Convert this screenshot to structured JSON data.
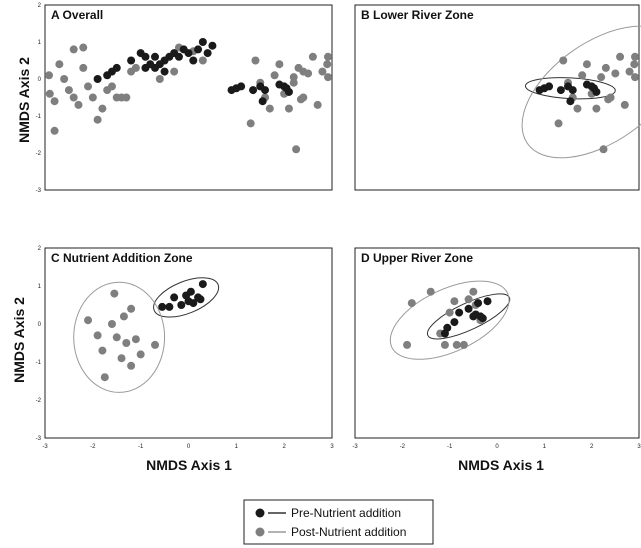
{
  "colors": {
    "pre": "#1a1a1a",
    "post": "#7f7f7f",
    "ellipse_pre": "#333333",
    "ellipse_post": "#9a9a9a"
  },
  "axis_titles": {
    "y": "NMDS Axis 2",
    "x": "NMDS Axis 1"
  },
  "legend": {
    "items": [
      {
        "label": "Pre-Nutrient addition",
        "series": "pre"
      },
      {
        "label": "Post-Nutrient addition",
        "series": "post"
      }
    ]
  },
  "chart_data": [
    {
      "type": "scatter",
      "title": "A  Overall",
      "xlim": [
        -3,
        3
      ],
      "ylim": [
        -3,
        2
      ],
      "yticks": [
        "2",
        "1",
        "0",
        "-1",
        "-2",
        "-3"
      ],
      "xticks": [],
      "series": [
        {
          "name": "Pre-Nutrient addition",
          "key": "pre",
          "points": [
            [
              -1.9,
              0.0
            ],
            [
              -1.7,
              0.1
            ],
            [
              -1.5,
              0.3
            ],
            [
              -1.6,
              0.2
            ],
            [
              -1.2,
              0.5
            ],
            [
              -1.0,
              0.7
            ],
            [
              -0.9,
              0.3
            ],
            [
              -0.8,
              0.4
            ],
            [
              -0.7,
              0.6
            ],
            [
              -0.6,
              0.4
            ],
            [
              -0.5,
              0.5
            ],
            [
              -0.4,
              0.6
            ],
            [
              -0.3,
              0.7
            ],
            [
              -0.2,
              0.6
            ],
            [
              -0.1,
              0.8
            ],
            [
              0.0,
              0.7
            ],
            [
              0.1,
              0.5
            ],
            [
              0.2,
              0.8
            ],
            [
              0.3,
              1.0
            ],
            [
              0.5,
              0.9
            ],
            [
              0.4,
              0.7
            ],
            [
              -0.9,
              0.6
            ],
            [
              -0.7,
              0.3
            ],
            [
              -0.5,
              0.2
            ],
            [
              0.9,
              -0.3
            ],
            [
              1.0,
              -0.25
            ],
            [
              1.1,
              -0.2
            ],
            [
              1.35,
              -0.3
            ],
            [
              1.5,
              -0.2
            ],
            [
              1.55,
              -0.6
            ],
            [
              1.6,
              -0.3
            ],
            [
              1.9,
              -0.15
            ],
            [
              2.0,
              -0.2
            ],
            [
              2.1,
              -0.35
            ],
            [
              2.05,
              -0.25
            ]
          ]
        },
        {
          "name": "Post-Nutrient addition",
          "key": "post",
          "points": [
            [
              -3.0,
              0.1
            ],
            [
              -2.9,
              -0.4
            ],
            [
              -2.8,
              -0.6
            ],
            [
              -2.7,
              0.4
            ],
            [
              -2.6,
              0.0
            ],
            [
              -2.5,
              -0.3
            ],
            [
              -2.4,
              -0.5
            ],
            [
              -2.4,
              0.8
            ],
            [
              -2.3,
              -0.7
            ],
            [
              -2.2,
              0.85
            ],
            [
              -2.2,
              0.3
            ],
            [
              -2.1,
              -0.2
            ],
            [
              -2.0,
              -0.5
            ],
            [
              -1.9,
              -1.1
            ],
            [
              -1.8,
              -0.8
            ],
            [
              -1.7,
              -0.3
            ],
            [
              -1.6,
              -0.2
            ],
            [
              -1.5,
              -0.5
            ],
            [
              -1.4,
              -0.5
            ],
            [
              -1.3,
              -0.5
            ],
            [
              -1.2,
              0.2
            ],
            [
              -1.1,
              0.3
            ],
            [
              -2.8,
              -1.4
            ],
            [
              -0.2,
              0.85
            ],
            [
              0.1,
              0.75
            ],
            [
              0.3,
              0.5
            ],
            [
              -0.6,
              0.0
            ],
            [
              -0.3,
              0.2
            ],
            [
              1.3,
              -1.2
            ],
            [
              1.4,
              0.5
            ],
            [
              1.5,
              -0.1
            ],
            [
              1.6,
              -0.5
            ],
            [
              1.7,
              -0.8
            ],
            [
              1.8,
              0.1
            ],
            [
              1.9,
              0.4
            ],
            [
              2.0,
              -0.4
            ],
            [
              2.1,
              -0.8
            ],
            [
              2.2,
              0.05
            ],
            [
              2.25,
              -1.9
            ],
            [
              2.3,
              0.3
            ],
            [
              2.35,
              -0.55
            ],
            [
              2.4,
              -0.5
            ],
            [
              2.5,
              0.15
            ],
            [
              2.6,
              0.6
            ],
            [
              2.7,
              -0.7
            ],
            [
              2.8,
              0.2
            ],
            [
              2.9,
              0.4
            ],
            [
              3.0,
              0.05
            ],
            [
              3.2,
              0.6
            ],
            [
              2.2,
              -0.1
            ],
            [
              2.4,
              0.2
            ]
          ]
        }
      ],
      "ellipses": []
    },
    {
      "type": "scatter",
      "title": "B  Lower River Zone",
      "xlim": [
        -3,
        3
      ],
      "ylim": [
        -3,
        2
      ],
      "yticks": [],
      "xticks": [],
      "series": [
        {
          "name": "Pre-Nutrient addition",
          "key": "pre",
          "points": [
            [
              0.9,
              -0.3
            ],
            [
              1.0,
              -0.25
            ],
            [
              1.1,
              -0.2
            ],
            [
              1.35,
              -0.3
            ],
            [
              1.5,
              -0.2
            ],
            [
              1.55,
              -0.6
            ],
            [
              1.6,
              -0.3
            ],
            [
              1.9,
              -0.15
            ],
            [
              2.0,
              -0.2
            ],
            [
              2.1,
              -0.35
            ],
            [
              2.05,
              -0.25
            ]
          ]
        },
        {
          "name": "Post-Nutrient addition",
          "key": "post",
          "points": [
            [
              1.3,
              -1.2
            ],
            [
              1.4,
              0.5
            ],
            [
              1.5,
              -0.1
            ],
            [
              1.6,
              -0.5
            ],
            [
              1.7,
              -0.8
            ],
            [
              1.8,
              0.1
            ],
            [
              1.9,
              0.4
            ],
            [
              2.0,
              -0.4
            ],
            [
              2.1,
              -0.8
            ],
            [
              2.2,
              0.05
            ],
            [
              2.25,
              -1.9
            ],
            [
              2.3,
              0.3
            ],
            [
              2.35,
              -0.55
            ],
            [
              2.4,
              -0.5
            ],
            [
              2.5,
              0.15
            ],
            [
              2.6,
              0.6
            ],
            [
              2.7,
              -0.7
            ],
            [
              2.8,
              0.2
            ],
            [
              2.9,
              0.4
            ],
            [
              3.0,
              0.05
            ],
            [
              3.2,
              0.6
            ]
          ]
        }
      ],
      "ellipses": [
        {
          "key": "pre",
          "cx": 1.55,
          "cy": -0.25,
          "rx": 0.95,
          "ry": 0.28,
          "angle": 3
        },
        {
          "key": "post",
          "cx": 2.2,
          "cy": -0.35,
          "rx": 1.9,
          "ry": 1.35,
          "angle": -35
        }
      ]
    },
    {
      "type": "scatter",
      "title": "C  Nutrient Addition Zone",
      "xlim": [
        -3,
        3
      ],
      "ylim": [
        -3,
        2
      ],
      "yticks": [
        "2",
        "1",
        "0",
        "-1",
        "-2",
        "-3"
      ],
      "xticks": [
        "-3",
        "-2",
        "-1",
        "0",
        "1",
        "2",
        "3"
      ],
      "series": [
        {
          "name": "Pre-Nutrient addition",
          "key": "pre",
          "points": [
            [
              -0.55,
              0.45
            ],
            [
              -0.3,
              0.7
            ],
            [
              -0.15,
              0.5
            ],
            [
              -0.05,
              0.75
            ],
            [
              0.0,
              0.6
            ],
            [
              0.1,
              0.55
            ],
            [
              0.2,
              0.7
            ],
            [
              0.3,
              1.05
            ],
            [
              0.25,
              0.65
            ],
            [
              0.05,
              0.85
            ],
            [
              -0.4,
              0.45
            ]
          ]
        },
        {
          "name": "Post-Nutrient addition",
          "key": "post",
          "points": [
            [
              -2.1,
              0.1
            ],
            [
              -1.9,
              -0.3
            ],
            [
              -1.8,
              -0.7
            ],
            [
              -1.75,
              -1.4
            ],
            [
              -1.6,
              0.0
            ],
            [
              -1.55,
              0.8
            ],
            [
              -1.5,
              -0.35
            ],
            [
              -1.4,
              -0.9
            ],
            [
              -1.3,
              -0.5
            ],
            [
              -1.2,
              -1.1
            ],
            [
              -1.1,
              -0.4
            ],
            [
              -1.0,
              -0.8
            ],
            [
              -0.7,
              -0.55
            ],
            [
              -1.2,
              0.4
            ],
            [
              -1.35,
              0.2
            ]
          ]
        }
      ],
      "ellipses": [
        {
          "key": "pre",
          "cx": -0.05,
          "cy": 0.7,
          "rx": 0.72,
          "ry": 0.42,
          "angle": -22
        },
        {
          "key": "post",
          "cx": -1.45,
          "cy": -0.35,
          "rx": 0.95,
          "ry": 1.45,
          "angle": 0
        }
      ]
    },
    {
      "type": "scatter",
      "title": "D  Upper River Zone",
      "xlim": [
        -3,
        3
      ],
      "ylim": [
        -3,
        2
      ],
      "yticks": [],
      "xticks": [
        "-3",
        "-2",
        "-1",
        "0",
        "1",
        "2",
        "3"
      ],
      "series": [
        {
          "name": "Pre-Nutrient addition",
          "key": "pre",
          "points": [
            [
              -1.1,
              -0.25
            ],
            [
              -1.05,
              -0.1
            ],
            [
              -0.9,
              0.05
            ],
            [
              -0.8,
              0.3
            ],
            [
              -0.6,
              0.4
            ],
            [
              -0.5,
              0.2
            ],
            [
              -0.45,
              0.25
            ],
            [
              -0.35,
              0.2
            ],
            [
              -0.3,
              0.15
            ],
            [
              -0.2,
              0.6
            ],
            [
              -0.4,
              0.55
            ]
          ]
        },
        {
          "name": "Post-Nutrient addition",
          "key": "post",
          "points": [
            [
              -1.9,
              -0.55
            ],
            [
              -1.8,
              0.55
            ],
            [
              -1.4,
              0.85
            ],
            [
              -1.2,
              -0.25
            ],
            [
              -1.1,
              -0.55
            ],
            [
              -1.0,
              0.3
            ],
            [
              -0.9,
              0.6
            ],
            [
              -0.85,
              -0.55
            ],
            [
              -0.7,
              -0.55
            ],
            [
              -0.6,
              0.65
            ],
            [
              -0.5,
              0.85
            ],
            [
              -0.45,
              0.5
            ],
            [
              -0.35,
              0.1
            ]
          ]
        }
      ],
      "ellipses": [
        {
          "key": "pre",
          "cx": -0.6,
          "cy": 0.2,
          "rx": 0.95,
          "ry": 0.35,
          "angle": -25
        },
        {
          "key": "post",
          "cx": -1.0,
          "cy": 0.1,
          "rx": 1.35,
          "ry": 0.82,
          "angle": -25
        }
      ]
    }
  ]
}
